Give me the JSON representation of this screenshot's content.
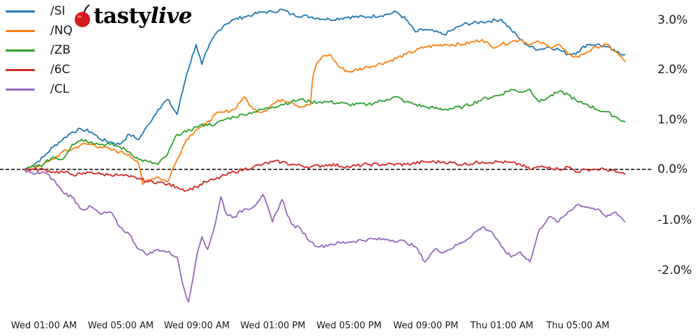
{
  "logo": {
    "brand_part1": "tasty",
    "brand_part2": "live"
  },
  "chart_data": {
    "type": "line",
    "title": "",
    "xlabel": "",
    "ylabel": "",
    "ylim": [
      -2.8,
      3.3
    ],
    "xlim_hours": [
      -1.0,
      32.5
    ],
    "grid": false,
    "legend_position": "upper left",
    "zero_line": {
      "value": 0.0,
      "style": "dashed",
      "color": "#000000"
    },
    "y_ticks": [
      {
        "value": 3.0,
        "label": "3.0%"
      },
      {
        "value": 2.0,
        "label": "2.0%"
      },
      {
        "value": 1.0,
        "label": "1.0%"
      },
      {
        "value": 0.0,
        "label": "0.0%"
      },
      {
        "value": -1.0,
        "label": "-1.0%"
      },
      {
        "value": -2.0,
        "label": "-2.0%"
      }
    ],
    "x_ticks": [
      {
        "hours": 1,
        "label": "Wed 01:00 AM"
      },
      {
        "hours": 5,
        "label": "Wed 05:00 AM"
      },
      {
        "hours": 9,
        "label": "Wed 09:00 AM"
      },
      {
        "hours": 13,
        "label": "Wed 01:00 PM"
      },
      {
        "hours": 17,
        "label": "Wed 05:00 PM"
      },
      {
        "hours": 21,
        "label": "Wed 09:00 PM"
      },
      {
        "hours": 25,
        "label": "Thu 01:00 AM"
      },
      {
        "hours": 29,
        "label": "Thu 05:00 AM"
      }
    ],
    "x_unit": "hours since Wed 00:00",
    "series": [
      {
        "name": "/SI",
        "color": "#1f77b4",
        "x": [
          0,
          0.5,
          1,
          1.5,
          2,
          2.5,
          3,
          3.5,
          4,
          4.5,
          5,
          5.5,
          6,
          6.5,
          7,
          7.5,
          8,
          8.5,
          9,
          9.3,
          9.6,
          10,
          10.5,
          11,
          11.5,
          12,
          12.5,
          13,
          13.5,
          14,
          15,
          16,
          17,
          18,
          19,
          19.5,
          20,
          20.5,
          21,
          22,
          23,
          24,
          25,
          25.5,
          26,
          26.5,
          27,
          27.5,
          28,
          28.5,
          29,
          29.5,
          30,
          30.5,
          31,
          31.5
        ],
        "values": [
          0.0,
          0.1,
          0.25,
          0.45,
          0.6,
          0.75,
          0.8,
          0.75,
          0.6,
          0.55,
          0.5,
          0.7,
          0.6,
          0.9,
          1.2,
          1.4,
          1.1,
          1.9,
          2.5,
          2.1,
          2.4,
          2.7,
          2.9,
          3.0,
          3.05,
          3.1,
          3.15,
          3.15,
          3.2,
          3.1,
          3.05,
          3.0,
          3.05,
          3.05,
          3.1,
          3.15,
          3.0,
          2.75,
          2.8,
          2.7,
          2.9,
          2.95,
          3.0,
          2.8,
          2.6,
          2.45,
          2.4,
          2.45,
          2.4,
          2.3,
          2.35,
          2.5,
          2.5,
          2.45,
          2.35,
          2.3
        ]
      },
      {
        "name": "/NQ",
        "color": "#ff7f0e",
        "x": [
          0,
          0.5,
          1,
          1.5,
          2,
          2.5,
          3,
          3.5,
          4,
          4.5,
          5,
          5.5,
          6,
          6.2,
          6.5,
          7,
          7.5,
          8,
          8.5,
          9,
          9.5,
          10,
          10.5,
          11,
          11.5,
          12,
          12.5,
          13,
          13.5,
          14,
          14.5,
          15,
          15.1,
          15.3,
          15.6,
          16,
          16.5,
          17,
          18,
          19,
          20,
          21,
          22,
          23,
          24,
          24.5,
          25,
          25.5,
          26,
          26.5,
          27,
          27.5,
          28,
          28.5,
          29,
          29.5,
          30,
          30.5,
          31,
          31.5
        ],
        "values": [
          0.0,
          0.05,
          0.1,
          0.2,
          0.35,
          0.4,
          0.5,
          0.5,
          0.45,
          0.4,
          0.35,
          0.3,
          0.1,
          -0.3,
          -0.2,
          -0.15,
          -0.25,
          0.2,
          0.6,
          0.8,
          0.9,
          1.1,
          1.15,
          1.2,
          1.45,
          1.2,
          1.15,
          1.3,
          1.4,
          1.35,
          1.25,
          1.3,
          1.8,
          2.1,
          2.25,
          2.3,
          2.05,
          1.95,
          2.05,
          2.15,
          2.3,
          2.45,
          2.5,
          2.5,
          2.6,
          2.45,
          2.5,
          2.55,
          2.6,
          2.5,
          2.55,
          2.45,
          2.5,
          2.3,
          2.25,
          2.35,
          2.45,
          2.5,
          2.35,
          2.15
        ]
      },
      {
        "name": "/ZB",
        "color": "#2ca02c",
        "x": [
          0,
          0.5,
          1,
          1.5,
          2,
          2.5,
          3,
          3.5,
          4,
          4.5,
          5,
          5.5,
          6,
          6.5,
          7,
          7.5,
          8,
          8.5,
          9,
          9.5,
          10,
          10.5,
          11,
          11.5,
          12,
          12.5,
          13,
          13.5,
          14,
          14.5,
          15,
          15.5,
          16,
          17,
          18,
          19,
          19.5,
          20,
          21,
          22,
          23,
          24,
          25,
          25.5,
          26,
          26.5,
          27,
          27.5,
          28,
          28.5,
          29,
          29.5,
          30,
          30.5,
          31,
          31.5
        ],
        "values": [
          0.0,
          0.05,
          0.1,
          0.25,
          0.2,
          0.5,
          0.6,
          0.55,
          0.5,
          0.5,
          0.45,
          0.35,
          0.2,
          0.15,
          0.1,
          0.3,
          0.7,
          0.75,
          0.85,
          0.9,
          0.9,
          1.0,
          1.05,
          1.1,
          1.15,
          1.2,
          1.25,
          1.3,
          1.35,
          1.4,
          1.35,
          1.35,
          1.35,
          1.3,
          1.3,
          1.4,
          1.45,
          1.35,
          1.25,
          1.2,
          1.25,
          1.4,
          1.5,
          1.6,
          1.55,
          1.6,
          1.35,
          1.45,
          1.55,
          1.5,
          1.35,
          1.3,
          1.2,
          1.15,
          1.05,
          0.95
        ]
      },
      {
        "name": "/6C",
        "color": "#d62728",
        "x": [
          0,
          0.5,
          1,
          1.5,
          2,
          2.5,
          3,
          3.5,
          4,
          4.5,
          5,
          5.5,
          6,
          6.5,
          7,
          7.5,
          8,
          8.5,
          9,
          9.5,
          10,
          10.5,
          11,
          11.5,
          12,
          12.5,
          13,
          13.5,
          14,
          15,
          16,
          17,
          18,
          19,
          20,
          21,
          22,
          23,
          24,
          25,
          26,
          26.5,
          27,
          27.5,
          28,
          28.5,
          29,
          29.5,
          30,
          30.5,
          31,
          31.5
        ],
        "values": [
          0.0,
          0.0,
          0.0,
          -0.05,
          -0.05,
          -0.1,
          -0.1,
          -0.05,
          -0.1,
          -0.1,
          -0.12,
          -0.15,
          -0.18,
          -0.25,
          -0.25,
          -0.3,
          -0.35,
          -0.42,
          -0.35,
          -0.25,
          -0.2,
          -0.12,
          -0.05,
          0.0,
          0.05,
          0.1,
          0.15,
          0.15,
          0.1,
          0.05,
          0.1,
          0.05,
          0.1,
          0.1,
          0.1,
          0.15,
          0.15,
          0.1,
          0.15,
          0.15,
          0.1,
          0.0,
          0.05,
          0.05,
          0.0,
          0.05,
          -0.05,
          0.0,
          0.0,
          0.0,
          -0.05,
          -0.1
        ]
      },
      {
        "name": "/CL",
        "color": "#9467bd",
        "x": [
          0,
          0.5,
          1,
          1.5,
          2,
          2.5,
          3,
          3.5,
          4,
          4.5,
          5,
          5.5,
          6,
          6.5,
          7,
          7.5,
          8,
          8.3,
          8.6,
          9,
          9.3,
          9.6,
          10,
          10.3,
          10.6,
          11,
          11.5,
          12,
          12.5,
          13,
          13.5,
          14,
          14.5,
          15,
          15.5,
          16,
          17,
          18,
          19,
          20,
          20.5,
          21,
          21.5,
          22,
          23,
          24,
          24.5,
          25,
          25.5,
          26,
          26.5,
          27,
          27.5,
          28,
          28.5,
          29,
          29.5,
          30,
          30.5,
          31,
          31.5
        ],
        "values": [
          0.0,
          -0.1,
          -0.05,
          -0.2,
          -0.45,
          -0.55,
          -0.8,
          -0.75,
          -0.9,
          -0.85,
          -1.15,
          -1.3,
          -1.6,
          -1.7,
          -1.6,
          -1.65,
          -1.75,
          -2.3,
          -2.65,
          -1.8,
          -1.35,
          -1.6,
          -1.1,
          -0.55,
          -0.9,
          -0.95,
          -0.8,
          -0.75,
          -0.5,
          -1.05,
          -0.6,
          -1.1,
          -1.2,
          -1.45,
          -1.55,
          -1.5,
          -1.45,
          -1.4,
          -1.4,
          -1.45,
          -1.55,
          -1.85,
          -1.6,
          -1.65,
          -1.45,
          -1.15,
          -1.25,
          -1.55,
          -1.75,
          -1.65,
          -1.85,
          -1.2,
          -0.95,
          -1.05,
          -0.85,
          -0.7,
          -0.75,
          -0.8,
          -0.95,
          -0.85,
          -1.05
        ]
      }
    ]
  }
}
